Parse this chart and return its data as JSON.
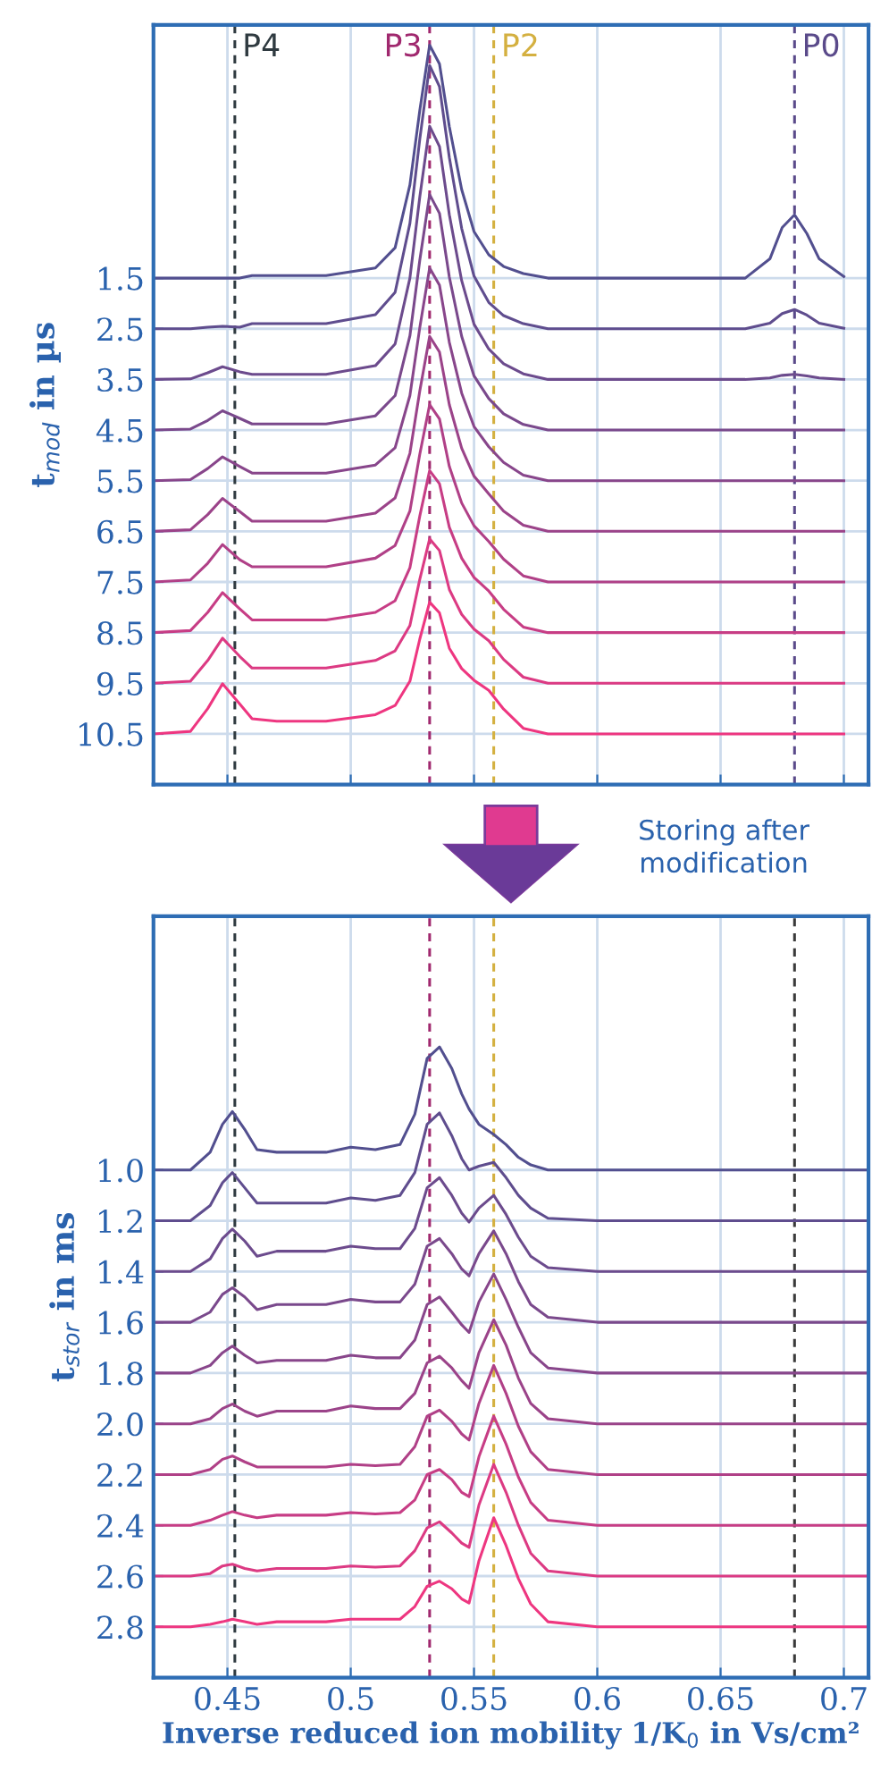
{
  "chart_data": [
    {
      "type": "line",
      "ylabel": "t$_{mod}$ in µs",
      "tick_labels": "y",
      "grid": true,
      "x": [
        0.42,
        0.435,
        0.442,
        0.448,
        0.455,
        0.46,
        0.47,
        0.49,
        0.51,
        0.518,
        0.524,
        0.528,
        0.532,
        0.536,
        0.54,
        0.545,
        0.55,
        0.556,
        0.562,
        0.57,
        0.58,
        0.6,
        0.63,
        0.66,
        0.67,
        0.675,
        0.68,
        0.685,
        0.69,
        0.7
      ],
      "xlim": [
        0.42,
        0.71
      ],
      "xticks": [
        0.45,
        0.5,
        0.55,
        0.6,
        0.65,
        0.7
      ],
      "ylim": [
        11.5,
        -3.5
      ],
      "yticks": [
        1.5,
        2.5,
        3.5,
        4.5,
        5.5,
        6.5,
        7.5,
        8.5,
        9.5,
        10.5
      ],
      "line_style": "solid",
      "series": [
        {
          "color": "#524f8f",
          "values": [
            1.5,
            1.5,
            1.5,
            1.5,
            1.5,
            1.45,
            1.45,
            1.45,
            1.3,
            0.9,
            -0.34,
            -1.81,
            -3.1,
            -2.73,
            -1.49,
            -0.25,
            0.58,
            1.04,
            1.27,
            1.41,
            1.5,
            1.5,
            1.5,
            1.5,
            1.12,
            0.5,
            0.25,
            0.62,
            1.12,
            1.47
          ]
        },
        {
          "color": "#5f4d8e",
          "values": [
            2.5,
            2.5,
            2.47,
            2.45,
            2.47,
            2.4,
            2.4,
            2.4,
            2.22,
            1.78,
            0.42,
            -1.24,
            -2.7,
            -2.28,
            -0.88,
            0.52,
            1.46,
            1.98,
            2.24,
            2.4,
            2.5,
            2.5,
            2.5,
            2.5,
            2.39,
            2.2,
            2.12,
            2.23,
            2.39,
            2.49
          ]
        },
        {
          "color": "#6c4b8d",
          "values": [
            3.5,
            3.49,
            3.37,
            3.25,
            3.35,
            3.4,
            3.4,
            3.4,
            3.23,
            2.8,
            1.5,
            -0.1,
            -1.5,
            -1.1,
            0.25,
            1.55,
            2.41,
            2.9,
            3.19,
            3.39,
            3.5,
            3.5,
            3.5,
            3.5,
            3.47,
            3.42,
            3.4,
            3.43,
            3.47,
            3.5
          ]
        },
        {
          "color": "#7a498c",
          "values": [
            4.5,
            4.48,
            4.31,
            4.12,
            4.27,
            4.38,
            4.38,
            4.38,
            4.22,
            3.82,
            2.64,
            1.15,
            -0.15,
            0.22,
            1.48,
            2.65,
            3.43,
            3.88,
            4.18,
            4.39,
            4.5,
            4.5,
            4.5,
            4.5,
            4.5,
            4.5,
            4.5,
            4.5,
            4.5,
            4.5
          ]
        },
        {
          "color": "#88468b",
          "values": [
            5.5,
            5.48,
            5.26,
            5.03,
            5.22,
            5.35,
            5.35,
            5.35,
            5.19,
            4.85,
            3.82,
            2.48,
            1.3,
            1.64,
            2.77,
            3.77,
            4.43,
            4.83,
            5.14,
            5.39,
            5.5,
            5.5,
            5.5,
            5.5,
            5.5,
            5.5,
            5.5,
            5.5,
            5.5,
            5.5
          ]
        },
        {
          "color": "#9b4389",
          "values": [
            6.5,
            6.47,
            6.17,
            5.85,
            6.11,
            6.3,
            6.3,
            6.3,
            6.14,
            5.84,
            4.96,
            3.73,
            2.65,
            2.96,
            4.0,
            4.86,
            5.41,
            5.76,
            6.1,
            6.38,
            6.5,
            6.5,
            6.5,
            6.5,
            6.5,
            6.5,
            6.5,
            6.5,
            6.5,
            6.5
          ]
        },
        {
          "color": "#b04087",
          "values": [
            7.5,
            7.46,
            7.13,
            6.76,
            7.06,
            7.2,
            7.2,
            7.2,
            7.03,
            6.78,
            6.1,
            4.98,
            4.0,
            4.28,
            5.22,
            5.94,
            6.39,
            6.7,
            7.05,
            7.38,
            7.5,
            7.5,
            7.5,
            7.5,
            7.5,
            7.5,
            7.5,
            7.5,
            7.5,
            7.5
          ]
        },
        {
          "color": "#c73d85",
          "values": [
            8.5,
            8.46,
            8.1,
            7.71,
            8.03,
            8.25,
            8.25,
            8.25,
            8.1,
            7.87,
            7.22,
            6.2,
            5.3,
            5.56,
            6.42,
            7.03,
            7.41,
            7.68,
            8.04,
            8.39,
            8.5,
            8.5,
            8.5,
            8.5,
            8.5,
            8.5,
            8.5,
            8.5,
            8.5,
            8.5
          ]
        },
        {
          "color": "#dc3a83",
          "values": [
            9.5,
            9.46,
            9.05,
            8.61,
            8.97,
            9.2,
            9.2,
            9.2,
            9.05,
            8.86,
            8.36,
            7.45,
            6.65,
            6.88,
            7.65,
            8.14,
            8.43,
            8.66,
            9.03,
            9.38,
            9.5,
            9.5,
            9.5,
            9.5,
            9.5,
            9.5,
            9.5,
            9.5,
            9.5,
            9.5
          ]
        },
        {
          "color": "#ee3680",
          "values": [
            10.5,
            10.45,
            10.0,
            9.51,
            9.91,
            10.2,
            10.25,
            10.25,
            10.12,
            9.94,
            9.46,
            8.63,
            7.9,
            8.11,
            8.81,
            9.21,
            9.44,
            9.64,
            10.01,
            10.39,
            10.5,
            10.5,
            10.5,
            10.5,
            10.5,
            10.5,
            10.5,
            10.5,
            10.5,
            10.5
          ]
        }
      ],
      "ref_lines": [
        {
          "axis": "x",
          "value": 0.453,
          "label": "P4",
          "color": "#2f3a40",
          "line_style": "dashed"
        },
        {
          "axis": "x",
          "value": 0.532,
          "label": "P3",
          "color": "#a0286e",
          "line_style": "dashed"
        },
        {
          "axis": "x",
          "value": 0.558,
          "label": "P2",
          "color": "#d4b040",
          "line_style": "dashed"
        },
        {
          "axis": "x",
          "value": 0.68,
          "label": "P0",
          "color": "#5a4a8a",
          "line_style": "dashed"
        }
      ]
    },
    {
      "type": "line",
      "ylabel": "t$_{stor}$ in ms",
      "xlabel": "Inverse reduced ion mobility 1/K$_{0}$ in Vs/cm²",
      "grid": true,
      "x": [
        0.42,
        0.435,
        0.443,
        0.448,
        0.452,
        0.457,
        0.462,
        0.47,
        0.49,
        0.5,
        0.51,
        0.52,
        0.526,
        0.531,
        0.536,
        0.541,
        0.545,
        0.548,
        0.552,
        0.558,
        0.563,
        0.568,
        0.573,
        0.58,
        0.6,
        0.63,
        0.66,
        0.68,
        0.7,
        0.71
      ],
      "xlim": [
        0.42,
        0.71
      ],
      "xticks": [
        0.45,
        0.5,
        0.55,
        0.6,
        0.65,
        0.7
      ],
      "ylim": [
        3.0,
        0.0
      ],
      "yticks": [
        {
          "value": 1,
          "label": "1.0"
        },
        1.2,
        1.4,
        1.6,
        1.8,
        {
          "value": 2,
          "label": "2.0"
        },
        2.2,
        2.4,
        2.6,
        2.8
      ],
      "line_style": "solid",
      "series": [
        {
          "color": "#524f8f",
          "values": [
            1.0,
            1.0,
            0.93,
            0.82,
            0.77,
            0.84,
            0.92,
            0.93,
            0.93,
            0.91,
            0.92,
            0.9,
            0.78,
            0.56,
            0.515,
            0.6,
            0.7,
            0.76,
            0.82,
            0.86,
            0.9,
            0.95,
            0.98,
            1.0,
            1.0,
            1.0,
            1.0,
            1.0,
            1.0,
            1.0
          ]
        },
        {
          "color": "#5f4d8e",
          "values": [
            1.2,
            1.2,
            1.14,
            1.05,
            1.01,
            1.07,
            1.13,
            1.13,
            1.13,
            1.11,
            1.12,
            1.1,
            1.01,
            0.82,
            0.775,
            0.865,
            0.955,
            1.0,
            0.985,
            0.97,
            1.03,
            1.1,
            1.15,
            1.19,
            1.2,
            1.2,
            1.2,
            1.2,
            1.2,
            1.2
          ]
        },
        {
          "color": "#6c4b8d",
          "values": [
            1.4,
            1.4,
            1.35,
            1.27,
            1.233,
            1.28,
            1.34,
            1.32,
            1.32,
            1.3,
            1.31,
            1.31,
            1.23,
            1.07,
            1.03,
            1.1,
            1.17,
            1.205,
            1.15,
            1.1,
            1.175,
            1.265,
            1.34,
            1.385,
            1.4,
            1.4,
            1.4,
            1.4,
            1.4,
            1.4
          ]
        },
        {
          "color": "#7a498c",
          "values": [
            1.6,
            1.6,
            1.56,
            1.49,
            1.464,
            1.5,
            1.55,
            1.53,
            1.53,
            1.51,
            1.52,
            1.52,
            1.45,
            1.3,
            1.27,
            1.33,
            1.39,
            1.417,
            1.33,
            1.24,
            1.33,
            1.44,
            1.53,
            1.58,
            1.6,
            1.6,
            1.6,
            1.6,
            1.6,
            1.6
          ]
        },
        {
          "color": "#88468b",
          "values": [
            1.8,
            1.8,
            1.77,
            1.72,
            1.694,
            1.73,
            1.76,
            1.75,
            1.75,
            1.73,
            1.74,
            1.74,
            1.67,
            1.53,
            1.5,
            1.56,
            1.61,
            1.64,
            1.52,
            1.41,
            1.51,
            1.62,
            1.72,
            1.78,
            1.8,
            1.8,
            1.8,
            1.8,
            1.8,
            1.8
          ]
        },
        {
          "color": "#9b4389",
          "values": [
            2.0,
            2.0,
            1.98,
            1.94,
            1.922,
            1.95,
            1.97,
            1.95,
            1.95,
            1.93,
            1.94,
            1.94,
            1.88,
            1.76,
            1.734,
            1.78,
            1.83,
            1.86,
            1.72,
            1.59,
            1.69,
            1.82,
            1.92,
            1.98,
            2.0,
            2.0,
            2.0,
            2.0,
            2.0,
            2.0
          ]
        },
        {
          "color": "#b04087",
          "values": [
            2.2,
            2.2,
            2.18,
            2.14,
            2.127,
            2.15,
            2.17,
            2.17,
            2.17,
            2.16,
            2.165,
            2.16,
            2.09,
            1.97,
            1.946,
            1.99,
            2.04,
            2.064,
            1.92,
            1.77,
            1.88,
            2.01,
            2.11,
            2.18,
            2.2,
            2.2,
            2.2,
            2.2,
            2.2,
            2.2
          ]
        },
        {
          "color": "#c73d85",
          "values": [
            2.4,
            2.4,
            2.38,
            2.36,
            2.346,
            2.36,
            2.37,
            2.36,
            2.36,
            2.35,
            2.355,
            2.35,
            2.3,
            2.2,
            2.18,
            2.22,
            2.27,
            2.287,
            2.13,
            1.97,
            2.08,
            2.21,
            2.31,
            2.38,
            2.4,
            2.4,
            2.4,
            2.4,
            2.4,
            2.4
          ]
        },
        {
          "color": "#dc3a83",
          "values": [
            2.6,
            2.6,
            2.59,
            2.56,
            2.553,
            2.57,
            2.58,
            2.57,
            2.57,
            2.56,
            2.565,
            2.56,
            2.5,
            2.41,
            2.386,
            2.43,
            2.47,
            2.487,
            2.32,
            2.16,
            2.27,
            2.4,
            2.51,
            2.58,
            2.6,
            2.6,
            2.6,
            2.6,
            2.6,
            2.6
          ]
        },
        {
          "color": "#ee3680",
          "values": [
            2.8,
            2.8,
            2.79,
            2.78,
            2.77,
            2.78,
            2.79,
            2.78,
            2.78,
            2.77,
            2.77,
            2.77,
            2.72,
            2.64,
            2.62,
            2.65,
            2.69,
            2.706,
            2.54,
            2.37,
            2.48,
            2.61,
            2.71,
            2.78,
            2.8,
            2.8,
            2.8,
            2.8,
            2.8,
            2.8
          ]
        }
      ],
      "ref_lines": [
        {
          "axis": "x",
          "value": 0.453,
          "color": "#2f3a40",
          "line_style": "dashed"
        },
        {
          "axis": "x",
          "value": 0.532,
          "color": "#a0286e",
          "line_style": "dashed"
        },
        {
          "axis": "x",
          "value": 0.558,
          "color": "#d4b040",
          "line_style": "dashed"
        },
        {
          "axis": "x",
          "value": 0.68,
          "color": "#3a3a3a",
          "line_style": "dashed"
        }
      ],
      "annotations": [
        "Storing after\nmodification"
      ]
    }
  ]
}
